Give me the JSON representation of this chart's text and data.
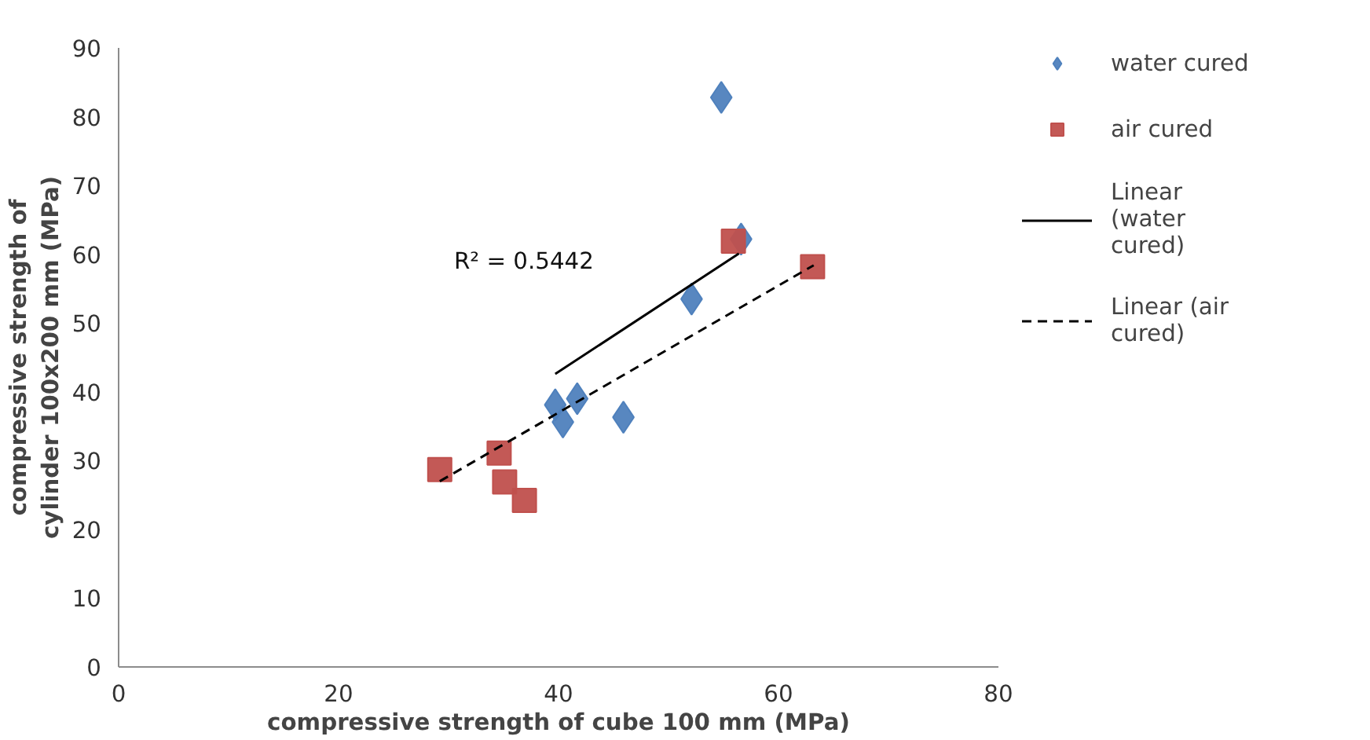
{
  "chart_data": {
    "type": "scatter",
    "xlabel": "compressive strength of cube 100 mm (MPa)",
    "ylabel": "compressive strength of cylinder 100x200 mm (MPa)",
    "xlim": [
      0,
      80
    ],
    "xticks": [
      0,
      20,
      40,
      60,
      80
    ],
    "ylim": [
      0,
      90
    ],
    "yticks": [
      0,
      10,
      20,
      30,
      40,
      50,
      60,
      70,
      80,
      90
    ],
    "grid": false,
    "legend": "right",
    "annotations": [
      "R² = 0.5442"
    ],
    "series": [
      {
        "name": "water cured",
        "marker": "diamond",
        "color": "#4f81bd",
        "x": [
          54.8,
          56.6,
          52.1,
          39.7,
          41.7,
          40.4,
          45.9
        ],
        "values": [
          82.8,
          62.2,
          53.5,
          38.1,
          39.0,
          35.6,
          36.3
        ]
      },
      {
        "name": "air cured",
        "marker": "square",
        "color": "#c0504d",
        "x": [
          55.9,
          63.1,
          29.2,
          34.6,
          35.1,
          36.9
        ],
        "values": [
          61.9,
          58.2,
          28.7,
          31.1,
          26.9,
          24.2
        ]
      },
      {
        "name": "Linear (water cured)",
        "type": "line",
        "marker": "none",
        "line_style": "solid",
        "color": "#000000",
        "x": [
          39.7,
          56.4
        ],
        "values": [
          42.6,
          60.1
        ]
      },
      {
        "name": "Linear (air cured)",
        "type": "line",
        "marker": "none",
        "line_style": "dashed",
        "color": "#000000",
        "x": [
          29.2,
          63.2
        ],
        "values": [
          27.0,
          58.4
        ]
      }
    ]
  }
}
